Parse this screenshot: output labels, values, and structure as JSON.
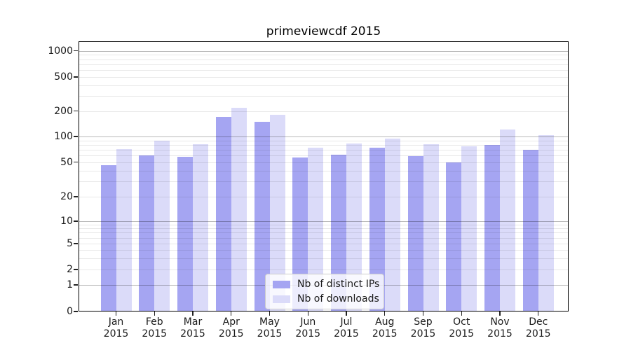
{
  "chart_data": {
    "type": "bar",
    "title": "primeviewcdf 2015",
    "x_categories": [
      {
        "month": "Jan",
        "year": "2015"
      },
      {
        "month": "Feb",
        "year": "2015"
      },
      {
        "month": "Mar",
        "year": "2015"
      },
      {
        "month": "Apr",
        "year": "2015"
      },
      {
        "month": "May",
        "year": "2015"
      },
      {
        "month": "Jun",
        "year": "2015"
      },
      {
        "month": "Jul",
        "year": "2015"
      },
      {
        "month": "Aug",
        "year": "2015"
      },
      {
        "month": "Sep",
        "year": "2015"
      },
      {
        "month": "Oct",
        "year": "2015"
      },
      {
        "month": "Nov",
        "year": "2015"
      },
      {
        "month": "Dec",
        "year": "2015"
      }
    ],
    "series": [
      {
        "name": "Nb of distinct IPs",
        "color": "#a5a5f2",
        "values": [
          46,
          60,
          58,
          170,
          148,
          57,
          61,
          74,
          59,
          50,
          79,
          70
        ]
      },
      {
        "name": "Nb of downloads",
        "color": "#dbdbf9",
        "values": [
          71,
          90,
          81,
          216,
          180,
          74,
          83,
          94,
          81,
          77,
          121,
          103
        ]
      }
    ],
    "y_axis": {
      "scale": "symlog",
      "tick_values": [
        0,
        1,
        2,
        5,
        10,
        20,
        50,
        100,
        200,
        500,
        1000
      ],
      "major_gridlines": [
        1,
        10,
        100,
        1000
      ],
      "minor_gridlines": [
        2,
        3,
        4,
        5,
        6,
        7,
        8,
        9,
        20,
        30,
        40,
        50,
        60,
        70,
        80,
        90,
        200,
        300,
        400,
        500,
        600,
        700,
        800,
        900
      ],
      "range": [
        0,
        1270
      ]
    },
    "legend": {
      "position": "lower-center",
      "items": [
        {
          "label": "Nb of distinct IPs",
          "color": "#a5a5f2"
        },
        {
          "label": "Nb of downloads",
          "color": "#dbdbf9"
        }
      ]
    }
  }
}
